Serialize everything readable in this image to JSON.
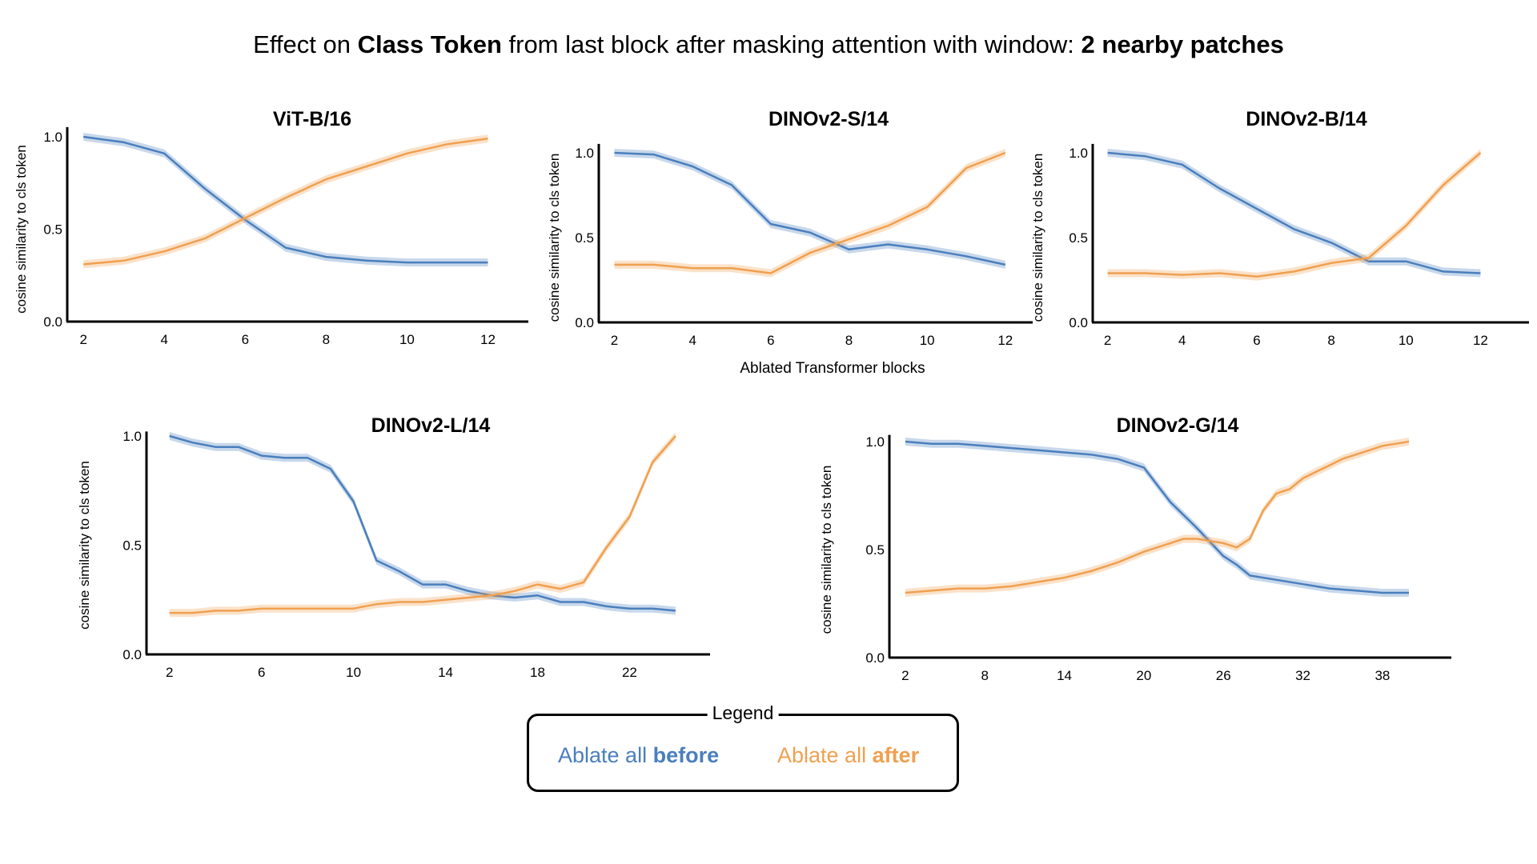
{
  "figure": {
    "title_parts": [
      "Effect on ",
      "Class Token",
      " from last block after masking attention with window: ",
      "2 nearby patches"
    ],
    "shared_xlabel": "Ablated Transformer blocks",
    "legend": {
      "title": "Legend",
      "before_prefix": "Ablate all ",
      "before_bold": "before",
      "after_prefix": "Ablate all ",
      "after_bold": "after"
    },
    "colors": {
      "before": "#4a7fbd",
      "after": "#f0a050"
    }
  },
  "chart_data": [
    {
      "type": "line",
      "title": "ViT-B/16",
      "xlabel": "",
      "ylabel": "cosine similarity to cls token",
      "xlim": [
        1.6,
        13
      ],
      "ylim": [
        0,
        1
      ],
      "xticks": [
        2,
        4,
        6,
        8,
        10,
        12
      ],
      "yticks": [
        "0.0",
        "0.5",
        "1.0"
      ],
      "series": [
        {
          "name": "Ablate all before",
          "x": [
            2,
            3,
            4,
            5,
            6,
            7,
            8,
            9,
            10,
            11,
            12
          ],
          "values": [
            1.0,
            0.97,
            0.91,
            0.72,
            0.55,
            0.4,
            0.35,
            0.33,
            0.32,
            0.32,
            0.32
          ]
        },
        {
          "name": "Ablate all after",
          "x": [
            2,
            3,
            4,
            5,
            6,
            7,
            8,
            9,
            10,
            11,
            12
          ],
          "values": [
            0.31,
            0.33,
            0.38,
            0.45,
            0.56,
            0.67,
            0.77,
            0.84,
            0.91,
            0.96,
            0.99
          ]
        }
      ]
    },
    {
      "type": "line",
      "title": "DINOv2-S/14",
      "xlabel": "",
      "ylabel": "cosine similarity to cls token",
      "xlim": [
        1.6,
        12.7
      ],
      "ylim": [
        0,
        1
      ],
      "xticks": [
        2,
        4,
        6,
        8,
        10,
        12
      ],
      "yticks": [
        "0.0",
        "0.5",
        "1.0"
      ],
      "series": [
        {
          "name": "Ablate all before",
          "x": [
            2,
            3,
            4,
            5,
            6,
            7,
            8,
            9,
            10,
            11,
            12
          ],
          "values": [
            1.0,
            0.99,
            0.92,
            0.81,
            0.58,
            0.53,
            0.43,
            0.46,
            0.43,
            0.39,
            0.34
          ]
        },
        {
          "name": "Ablate all after",
          "x": [
            2,
            3,
            4,
            5,
            6,
            7,
            8,
            9,
            10,
            11,
            12
          ],
          "values": [
            0.34,
            0.34,
            0.32,
            0.32,
            0.29,
            0.41,
            0.49,
            0.57,
            0.68,
            0.91,
            1.0
          ]
        }
      ]
    },
    {
      "type": "line",
      "title": "DINOv2-B/14",
      "xlabel": "",
      "ylabel": "cosine similarity to cls token",
      "xlim": [
        1.6,
        13.3
      ],
      "ylim": [
        0,
        1
      ],
      "xticks": [
        2,
        4,
        6,
        8,
        10,
        12
      ],
      "yticks": [
        "0.0",
        "0.5",
        "1.0"
      ],
      "series": [
        {
          "name": "Ablate all before",
          "x": [
            2,
            3,
            4,
            5,
            6,
            7,
            8,
            9,
            10,
            11,
            12
          ],
          "values": [
            1.0,
            0.98,
            0.93,
            0.79,
            0.67,
            0.55,
            0.47,
            0.36,
            0.36,
            0.3,
            0.29
          ]
        },
        {
          "name": "Ablate all after",
          "x": [
            2,
            3,
            4,
            5,
            6,
            7,
            8,
            9,
            10,
            11,
            12
          ],
          "values": [
            0.29,
            0.29,
            0.28,
            0.29,
            0.27,
            0.3,
            0.35,
            0.38,
            0.57,
            0.81,
            1.0
          ]
        }
      ]
    },
    {
      "type": "line",
      "title": "DINOv2-L/14",
      "xlabel": "",
      "ylabel": "cosine similarity to cls token",
      "xlim": [
        1,
        25.5
      ],
      "ylim": [
        0,
        1
      ],
      "xticks": [
        2,
        6,
        10,
        14,
        18,
        22
      ],
      "yticks": [
        "0.0",
        "0.5",
        "1.0"
      ],
      "series": [
        {
          "name": "Ablate all before",
          "x": [
            2,
            3,
            4,
            5,
            6,
            7,
            8,
            9,
            10,
            11,
            12,
            13,
            14,
            15,
            16,
            17,
            18,
            19,
            20,
            21,
            22,
            23,
            24
          ],
          "values": [
            1.0,
            0.97,
            0.95,
            0.95,
            0.91,
            0.9,
            0.9,
            0.85,
            0.7,
            0.43,
            0.38,
            0.32,
            0.32,
            0.29,
            0.27,
            0.26,
            0.27,
            0.24,
            0.24,
            0.22,
            0.21,
            0.21,
            0.2
          ]
        },
        {
          "name": "Ablate all after",
          "x": [
            2,
            3,
            4,
            5,
            6,
            7,
            8,
            9,
            10,
            11,
            12,
            13,
            14,
            15,
            16,
            17,
            18,
            19,
            20,
            21,
            22,
            23,
            24
          ],
          "values": [
            0.19,
            0.19,
            0.2,
            0.2,
            0.21,
            0.21,
            0.21,
            0.21,
            0.21,
            0.23,
            0.24,
            0.24,
            0.25,
            0.26,
            0.27,
            0.29,
            0.32,
            0.3,
            0.33,
            0.49,
            0.63,
            0.88,
            1.0
          ]
        }
      ]
    },
    {
      "type": "line",
      "title": "DINOv2-G/14",
      "xlabel": "",
      "ylabel": "cosine similarity to cls token",
      "xlim": [
        0.8,
        43.2
      ],
      "ylim": [
        0,
        1
      ],
      "xticks": [
        2,
        8,
        14,
        20,
        26,
        32,
        38
      ],
      "yticks": [
        "0.0",
        "0.5",
        "1.0"
      ],
      "series": [
        {
          "name": "Ablate all before",
          "x": [
            2,
            4,
            6,
            8,
            10,
            12,
            14,
            16,
            18,
            20,
            21,
            22,
            24,
            26,
            27,
            28,
            30,
            32,
            34,
            36,
            38,
            40
          ],
          "values": [
            1.0,
            0.99,
            0.99,
            0.98,
            0.97,
            0.96,
            0.95,
            0.94,
            0.92,
            0.88,
            0.8,
            0.72,
            0.6,
            0.47,
            0.43,
            0.38,
            0.36,
            0.34,
            0.32,
            0.31,
            0.3,
            0.3
          ]
        },
        {
          "name": "Ablate all after",
          "x": [
            2,
            4,
            6,
            8,
            10,
            12,
            14,
            16,
            18,
            20,
            22,
            23,
            24,
            25,
            26,
            27,
            28,
            29,
            30,
            31,
            32,
            33,
            34,
            35,
            36,
            37,
            38,
            39,
            40
          ],
          "values": [
            0.3,
            0.31,
            0.32,
            0.32,
            0.33,
            0.35,
            0.37,
            0.4,
            0.44,
            0.49,
            0.53,
            0.55,
            0.55,
            0.54,
            0.53,
            0.51,
            0.55,
            0.68,
            0.76,
            0.78,
            0.83,
            0.86,
            0.89,
            0.92,
            0.94,
            0.96,
            0.98,
            0.99,
            1.0
          ]
        }
      ]
    }
  ]
}
